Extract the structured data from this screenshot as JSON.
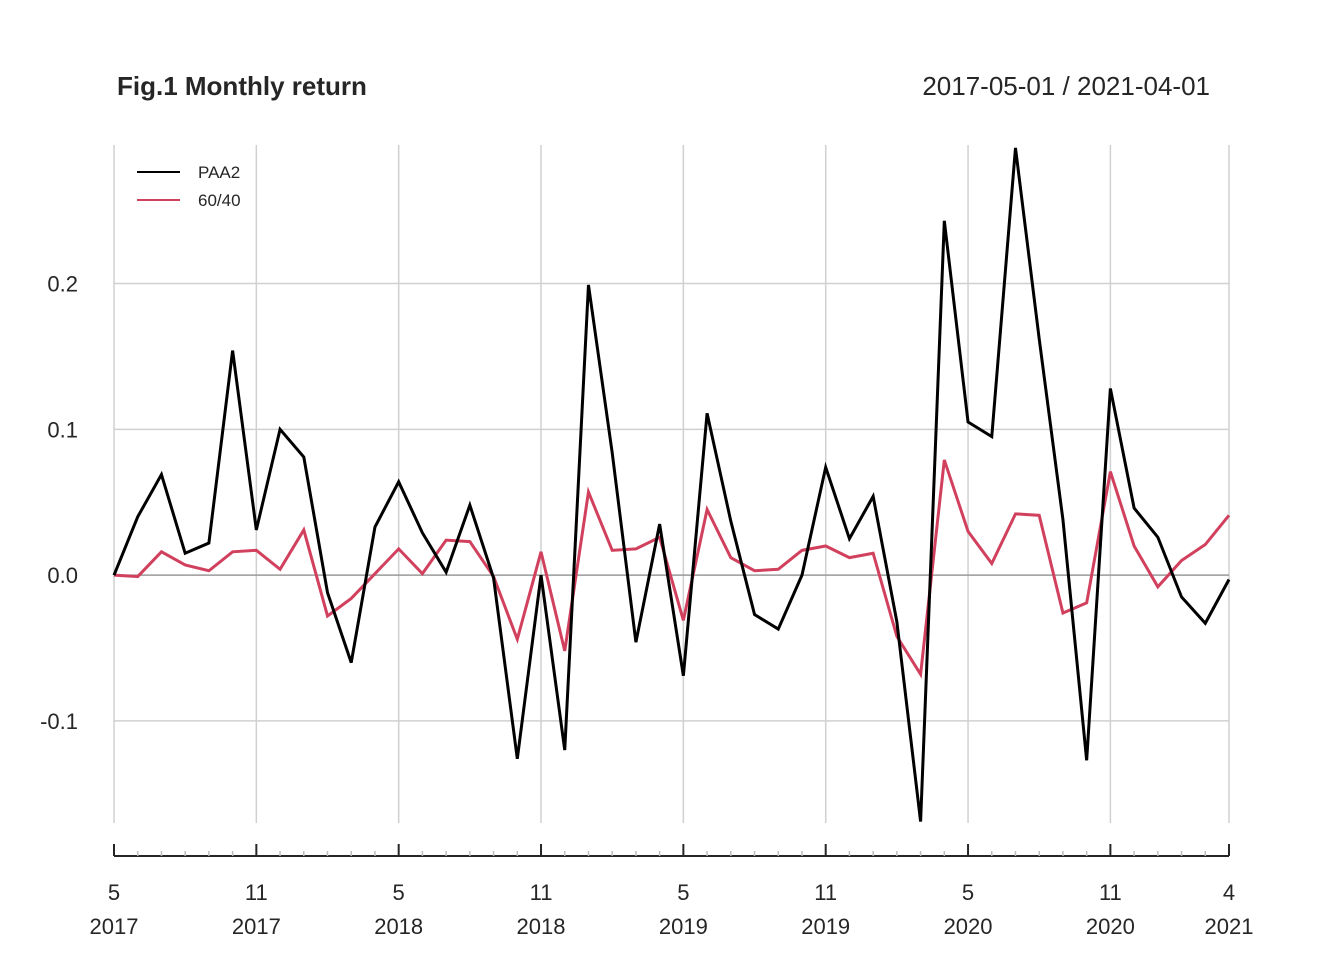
{
  "chart_data": {
    "type": "line",
    "title": "Fig.1 Monthly return",
    "date_range": "2017-05-01 / 2021-04-01",
    "x": [
      "2017-05",
      "2017-06",
      "2017-07",
      "2017-08",
      "2017-09",
      "2017-10",
      "2017-11",
      "2017-12",
      "2018-01",
      "2018-02",
      "2018-03",
      "2018-04",
      "2018-05",
      "2018-06",
      "2018-07",
      "2018-08",
      "2018-09",
      "2018-10",
      "2018-11",
      "2018-12",
      "2019-01",
      "2019-02",
      "2019-03",
      "2019-04",
      "2019-05",
      "2019-06",
      "2019-07",
      "2019-08",
      "2019-09",
      "2019-10",
      "2019-11",
      "2019-12",
      "2020-01",
      "2020-02",
      "2020-03",
      "2020-04",
      "2020-05",
      "2020-06",
      "2020-07",
      "2020-08",
      "2020-09",
      "2020-10",
      "2020-11",
      "2020-12",
      "2021-01",
      "2021-02",
      "2021-03",
      "2021-04"
    ],
    "series": [
      {
        "name": "PAA2",
        "color": "#000000",
        "values": [
          0.0,
          0.04,
          0.069,
          0.015,
          0.022,
          0.154,
          0.031,
          0.1,
          0.081,
          -0.012,
          -0.06,
          0.033,
          0.064,
          0.029,
          0.002,
          0.048,
          -0.002,
          -0.126,
          0.0,
          -0.12,
          0.199,
          0.084,
          -0.046,
          0.035,
          -0.069,
          0.111,
          0.037,
          -0.027,
          -0.037,
          0.0,
          0.074,
          0.025,
          0.054,
          -0.032,
          -0.169,
          0.243,
          0.105,
          0.095,
          0.293,
          0.162,
          0.038,
          -0.127,
          0.128,
          0.046,
          0.026,
          -0.015,
          -0.033,
          -0.003
        ]
      },
      {
        "name": "60/40",
        "color": "#d1415e",
        "values": [
          0.0,
          -0.001,
          0.016,
          0.007,
          0.003,
          0.016,
          0.017,
          0.004,
          0.031,
          -0.028,
          -0.016,
          0.001,
          0.018,
          0.001,
          0.024,
          0.023,
          -0.001,
          -0.044,
          0.016,
          -0.052,
          0.057,
          0.017,
          0.018,
          0.026,
          -0.031,
          0.045,
          0.012,
          0.003,
          0.004,
          0.017,
          0.02,
          0.012,
          0.015,
          -0.042,
          -0.068,
          0.079,
          0.03,
          0.008,
          0.042,
          0.041,
          -0.026,
          -0.019,
          0.071,
          0.02,
          -0.008,
          0.01,
          0.021,
          0.041
        ]
      }
    ],
    "yticks": [
      "0.2",
      "0.1",
      "0.0",
      "-0.1"
    ],
    "ytick_values": [
      0.2,
      0.1,
      0.0,
      -0.1
    ],
    "ylim": [
      -0.17,
      0.295
    ],
    "xticks": [
      {
        "index": 0,
        "month": "5",
        "year": "2017"
      },
      {
        "index": 6,
        "month": "11",
        "year": "2017"
      },
      {
        "index": 12,
        "month": "5",
        "year": "2018"
      },
      {
        "index": 18,
        "month": "11",
        "year": "2018"
      },
      {
        "index": 24,
        "month": "5",
        "year": "2019"
      },
      {
        "index": 30,
        "month": "11",
        "year": "2019"
      },
      {
        "index": 36,
        "month": "5",
        "year": "2020"
      },
      {
        "index": 42,
        "month": "11",
        "year": "2020"
      },
      {
        "index": 47,
        "month": "4",
        "year": "2021"
      }
    ],
    "grid": true,
    "legend_position": "top-left",
    "gridline_color": "#d0d0d0",
    "zero_line_color": "#9a9a9a"
  }
}
